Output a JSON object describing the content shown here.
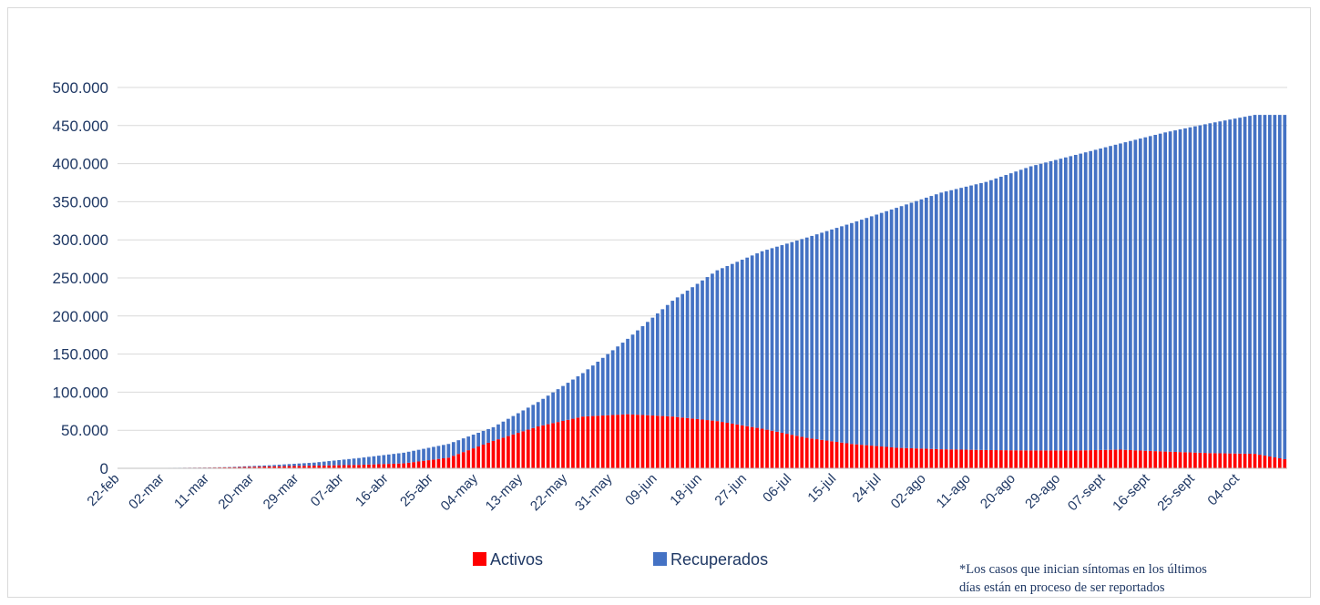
{
  "chart_data": {
    "type": "bar",
    "stacked": true,
    "title": "",
    "xlabel": "",
    "ylabel": "",
    "ylim": [
      0,
      500000
    ],
    "yticks": [
      0,
      50000,
      100000,
      150000,
      200000,
      250000,
      300000,
      350000,
      400000,
      450000,
      500000
    ],
    "ytick_labels": [
      "0",
      "50.000",
      "100.000",
      "150.000",
      "200.000",
      "250.000",
      "300.000",
      "350.000",
      "400.000",
      "450.000",
      "500.000"
    ],
    "xtick_labels": [
      "22-feb",
      "02-mar",
      "11-mar",
      "20-mar",
      "29-mar",
      "07-abr",
      "16-abr",
      "25-abr",
      "04-may",
      "13-may",
      "22-may",
      "31-may",
      "09-jun",
      "18-jun",
      "27-jun",
      "06-jul",
      "15-jul",
      "24-jul",
      "02-ago",
      "11-ago",
      "20-ago",
      "29-ago",
      "07-sept",
      "16-sept",
      "25-sept",
      "04-oct"
    ],
    "label_every_days": 9,
    "grid": true,
    "legend_position": "bottom-center",
    "series": [
      {
        "name": "Activos",
        "color": "#ff0000",
        "anchors": [
          [
            0,
            200
          ],
          [
            12,
            600
          ],
          [
            21,
            1200
          ],
          [
            30,
            2500
          ],
          [
            39,
            3500
          ],
          [
            48,
            4500
          ],
          [
            57,
            6500
          ],
          [
            66,
            14000
          ],
          [
            75,
            36000
          ],
          [
            84,
            55000
          ],
          [
            93,
            68000
          ],
          [
            102,
            71000
          ],
          [
            111,
            68000
          ],
          [
            120,
            62000
          ],
          [
            129,
            52000
          ],
          [
            138,
            40000
          ],
          [
            147,
            32000
          ],
          [
            156,
            27000
          ],
          [
            165,
            25000
          ],
          [
            174,
            24000
          ],
          [
            183,
            23500
          ],
          [
            192,
            23500
          ],
          [
            201,
            24500
          ],
          [
            210,
            22000
          ],
          [
            219,
            20000
          ],
          [
            228,
            19000
          ],
          [
            234,
            12000
          ]
        ]
      },
      {
        "name": "Recuperados",
        "color": "#4472c4",
        "anchors": [
          [
            0,
            0
          ],
          [
            12,
            100
          ],
          [
            21,
            300
          ],
          [
            30,
            1500
          ],
          [
            39,
            4000
          ],
          [
            48,
            9000
          ],
          [
            57,
            14000
          ],
          [
            66,
            18000
          ],
          [
            75,
            18000
          ],
          [
            84,
            32000
          ],
          [
            93,
            57000
          ],
          [
            102,
            99000
          ],
          [
            111,
            152000
          ],
          [
            120,
            198000
          ],
          [
            129,
            233000
          ],
          [
            138,
            263000
          ],
          [
            147,
            290000
          ],
          [
            156,
            315000
          ],
          [
            165,
            337000
          ],
          [
            174,
            352000
          ],
          [
            183,
            373000
          ],
          [
            192,
            388000
          ],
          [
            201,
            402000
          ],
          [
            210,
            419000
          ],
          [
            219,
            433000
          ],
          [
            228,
            445000
          ],
          [
            234,
            452000
          ]
        ]
      }
    ]
  },
  "note": {
    "line1": "*Los casos que inician síntomas en los últimos",
    "line2": "días están en proceso de ser reportados"
  }
}
